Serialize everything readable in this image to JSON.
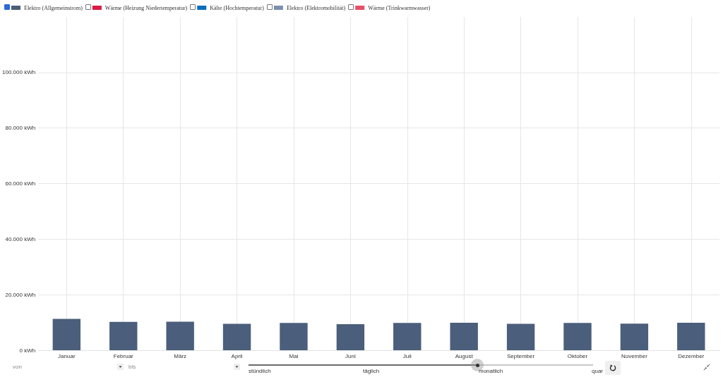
{
  "chart_data": {
    "type": "bar",
    "categories": [
      "Januar",
      "Februar",
      "März",
      "April",
      "Mai",
      "Juni",
      "Juli",
      "August",
      "September",
      "Oktober",
      "November",
      "Dezember"
    ],
    "series": [
      {
        "name": "Elektro (Allgemeinstrom)",
        "color": "#4b5e7b",
        "values": [
          11300,
          10200,
          10300,
          9500,
          9800,
          9400,
          9800,
          9900,
          9500,
          9800,
          9600,
          9900
        ]
      },
      {
        "name": "Wärme (Heizung Niedertemperatur)",
        "color": "#d81b45",
        "values": [
          null,
          null,
          null,
          null,
          null,
          null,
          null,
          null,
          null,
          null,
          null,
          null
        ]
      },
      {
        "name": "Kälte (Hochtemperatur)",
        "color": "#0a6ebd",
        "values": [
          null,
          null,
          null,
          null,
          null,
          null,
          null,
          null,
          null,
          null,
          null,
          null
        ]
      },
      {
        "name": "Elektro (Elektromobilität)",
        "color": "#7b8fae",
        "values": [
          null,
          null,
          null,
          null,
          null,
          null,
          null,
          null,
          null,
          null,
          null,
          null
        ]
      },
      {
        "name": "Wärme (Trinkwarmwasser)",
        "color": "#e5506a",
        "values": [
          null,
          null,
          null,
          null,
          null,
          null,
          null,
          null,
          null,
          null,
          null,
          null
        ]
      }
    ],
    "ylim": [
      0,
      120000
    ],
    "yticks": [
      {
        "value": 0,
        "label": "0 kWh"
      },
      {
        "value": 20000,
        "label": "20.000 kWh"
      },
      {
        "value": 40000,
        "label": "40.000 kWh"
      },
      {
        "value": 60000,
        "label": "60.000 kWh"
      },
      {
        "value": 80000,
        "label": "80.000 kWh"
      },
      {
        "value": 100000,
        "label": "100.000 kWh"
      }
    ],
    "grid": true,
    "legend": "top left",
    "annotations": [
      "von",
      "bis",
      "stündlich",
      "täglich",
      "monatlich",
      "quar"
    ]
  }
}
